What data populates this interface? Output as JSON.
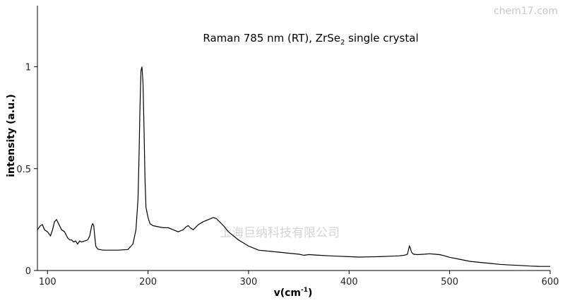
{
  "watermark_corner": "chem17.com",
  "watermark_center": "上海巨纳科技有限公司",
  "chart_data": {
    "type": "line",
    "title": "Raman 785 nm (RT), ZrSe",
    "title_subscript": "2",
    "title_suffix": " single crystal",
    "xlabel": "v(cm",
    "xlabel_superscript": "-1",
    "xlabel_suffix": ")",
    "ylabel": "intensity (a.u.)",
    "xlim": [
      90,
      600
    ],
    "ylim": [
      0,
      1.3
    ],
    "x_ticks": [
      100,
      200,
      300,
      400,
      500,
      600
    ],
    "x_tick_labels": [
      "100",
      "200",
      "300",
      "400",
      "500",
      "600"
    ],
    "y_ticks": [
      0,
      0.5,
      1
    ],
    "y_tick_labels": [
      "0",
      "0.5",
      "1"
    ],
    "grid": false,
    "line_color": "#000000",
    "series": [
      {
        "x": [
          90,
          93,
          95,
          97,
          100,
          103,
          105,
          107,
          109,
          111,
          114,
          117,
          120,
          122,
          124,
          126,
          128,
          130,
          132,
          134,
          137,
          140,
          142,
          144,
          145,
          146,
          147,
          148,
          150,
          155,
          160,
          170,
          180,
          185,
          188,
          190,
          191,
          192,
          193,
          194,
          195,
          196,
          197,
          198,
          200,
          202,
          205,
          210,
          215,
          220,
          225,
          230,
          235,
          238,
          240,
          242,
          245,
          250,
          255,
          260,
          265,
          268,
          270,
          275,
          280,
          290,
          300,
          310,
          320,
          330,
          340,
          350,
          355,
          360,
          370,
          380,
          390,
          400,
          410,
          420,
          430,
          440,
          450,
          455,
          458,
          460,
          461,
          462,
          464,
          468,
          475,
          480,
          485,
          490,
          495,
          500,
          510,
          520,
          530,
          540,
          550,
          560,
          570,
          580,
          590,
          600
        ],
        "y": [
          0.2,
          0.22,
          0.225,
          0.2,
          0.19,
          0.17,
          0.2,
          0.24,
          0.25,
          0.23,
          0.2,
          0.19,
          0.16,
          0.15,
          0.15,
          0.14,
          0.145,
          0.13,
          0.145,
          0.14,
          0.145,
          0.15,
          0.17,
          0.22,
          0.23,
          0.22,
          0.17,
          0.12,
          0.105,
          0.1,
          0.1,
          0.1,
          0.103,
          0.13,
          0.2,
          0.35,
          0.55,
          0.8,
          0.98,
          1.0,
          0.92,
          0.7,
          0.45,
          0.31,
          0.26,
          0.23,
          0.22,
          0.215,
          0.21,
          0.21,
          0.2,
          0.19,
          0.2,
          0.215,
          0.22,
          0.21,
          0.2,
          0.225,
          0.24,
          0.25,
          0.26,
          0.255,
          0.245,
          0.22,
          0.19,
          0.15,
          0.12,
          0.1,
          0.095,
          0.09,
          0.085,
          0.08,
          0.075,
          0.078,
          0.075,
          0.072,
          0.07,
          0.068,
          0.066,
          0.067,
          0.068,
          0.07,
          0.072,
          0.075,
          0.08,
          0.12,
          0.11,
          0.09,
          0.08,
          0.078,
          0.08,
          0.082,
          0.08,
          0.078,
          0.072,
          0.065,
          0.055,
          0.045,
          0.04,
          0.035,
          0.03,
          0.027,
          0.025,
          0.022,
          0.02,
          0.02
        ]
      }
    ]
  }
}
